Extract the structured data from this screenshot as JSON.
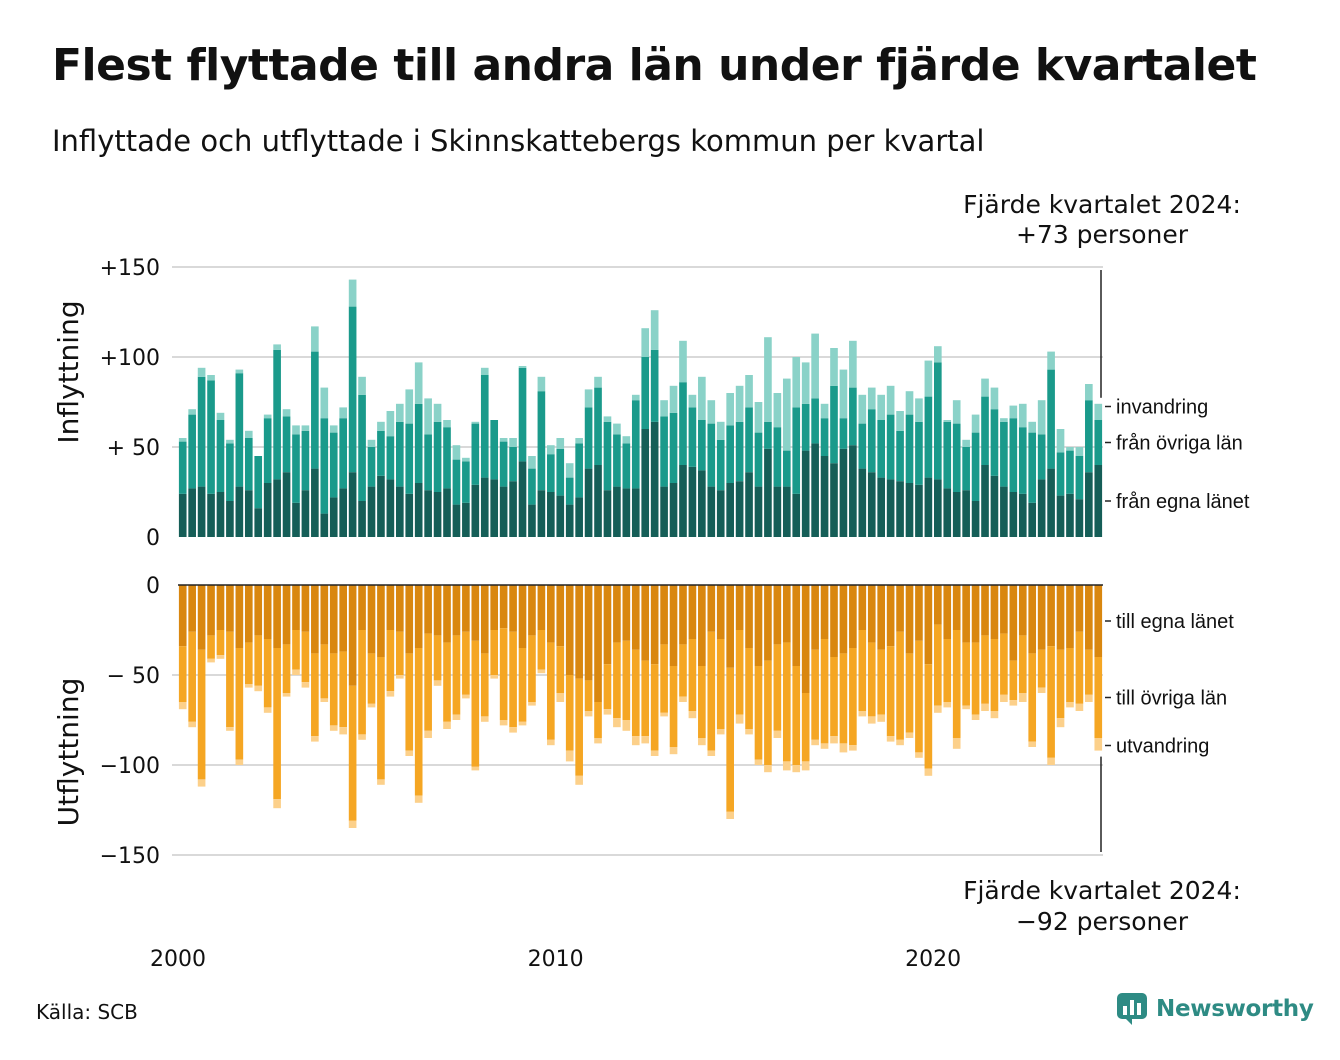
{
  "title": "Flest flyttade till andra län under fjärde kvartalet",
  "subtitle": "Inflyttade och utflyttade i Skinnskattebergs kommun per kvartal",
  "source": "Källa: SCB",
  "brand": "Newsworthy",
  "colors": {
    "in_own": "#155e57",
    "in_other": "#1a9a8b",
    "in_immig": "#8ad2c8",
    "out_own": "#d9870f",
    "out_other": "#f5a623",
    "out_emig": "#fcd08a",
    "grid": "#d9d9d9",
    "brand": "#2e8b84"
  },
  "annotations": {
    "top_line1": "Fjärde kvartalet 2024:",
    "top_line2": "+73 personer",
    "bottom_line1": "Fjärde kvartalet 2024:",
    "bottom_line2": "−92 personer"
  },
  "chart_data": [
    {
      "type": "bar",
      "stacked": true,
      "ylabel": "Inflyttning",
      "ylim": [
        0,
        150
      ],
      "yticks": [
        0,
        50,
        100,
        150
      ],
      "ytick_labels": [
        "0",
        "+ 50",
        "+100",
        "+150"
      ],
      "xticks": [
        "2000",
        "2010",
        "2020"
      ],
      "grid": true,
      "series": [
        {
          "name": "från egna länet",
          "values": [
            24,
            27,
            28,
            24,
            25,
            20,
            28,
            26,
            16,
            30,
            32,
            36,
            19,
            26,
            38,
            13,
            22,
            27,
            36,
            20,
            28,
            34,
            32,
            28,
            24,
            30,
            26,
            25,
            27,
            18,
            19,
            29,
            33,
            32,
            28,
            31,
            42,
            18,
            26,
            25,
            23,
            18,
            22,
            38,
            40,
            26,
            28,
            27,
            27,
            60,
            64,
            28,
            30,
            40,
            39,
            37,
            28,
            26,
            30,
            31,
            36,
            28,
            49,
            28,
            28,
            24,
            48,
            52,
            45,
            41,
            49,
            51,
            38,
            36,
            33,
            32,
            31,
            30,
            29,
            33,
            32,
            27,
            25,
            26,
            20,
            40,
            34,
            28,
            25,
            24,
            19,
            32,
            38,
            23,
            24,
            21,
            36,
            40
          ]
        },
        {
          "name": "från övriga län",
          "values": [
            29,
            41,
            61,
            63,
            40,
            32,
            63,
            29,
            29,
            36,
            72,
            31,
            38,
            33,
            65,
            53,
            36,
            39,
            92,
            59,
            22,
            25,
            24,
            36,
            39,
            44,
            31,
            39,
            34,
            25,
            23,
            34,
            57,
            33,
            25,
            19,
            52,
            20,
            55,
            21,
            26,
            15,
            30,
            34,
            43,
            38,
            29,
            25,
            49,
            40,
            40,
            39,
            39,
            46,
            33,
            28,
            35,
            28,
            32,
            33,
            36,
            30,
            15,
            33,
            20,
            48,
            26,
            25,
            21,
            43,
            17,
            32,
            25,
            35,
            32,
            36,
            28,
            38,
            35,
            45,
            65,
            37,
            38,
            24,
            38,
            38,
            37,
            36,
            41,
            37,
            39,
            25,
            55,
            24,
            24,
            24,
            40,
            25
          ]
        },
        {
          "name": "invandring",
          "values": [
            2,
            3,
            5,
            3,
            4,
            2,
            2,
            4,
            0,
            2,
            3,
            4,
            5,
            3,
            14,
            17,
            4,
            6,
            15,
            10,
            4,
            5,
            14,
            10,
            19,
            23,
            20,
            10,
            4,
            8,
            2,
            1,
            4,
            0,
            2,
            5,
            1,
            7,
            8,
            5,
            6,
            8,
            3,
            10,
            6,
            3,
            6,
            4,
            3,
            16,
            22,
            9,
            15,
            23,
            7,
            24,
            13,
            10,
            18,
            20,
            18,
            17,
            47,
            19,
            40,
            28,
            23,
            36,
            8,
            21,
            27,
            26,
            16,
            12,
            14,
            16,
            11,
            13,
            13,
            20,
            9,
            1,
            13,
            4,
            10,
            10,
            12,
            2,
            7,
            13,
            6,
            19,
            10,
            13,
            2,
            5,
            9,
            9
          ]
        }
      ]
    },
    {
      "type": "bar",
      "stacked": true,
      "ylabel": "Utflyttning",
      "ylim": [
        -150,
        0
      ],
      "yticks": [
        0,
        -50,
        -100,
        -150
      ],
      "ytick_labels": [
        "0",
        "− 50",
        "−100",
        "−150"
      ],
      "xticks": [
        "2000",
        "2010",
        "2020"
      ],
      "grid": true,
      "series": [
        {
          "name": "till egna länet",
          "values": [
            -34,
            -26,
            -36,
            -28,
            -25,
            -26,
            -35,
            -32,
            -28,
            -30,
            -35,
            -33,
            -25,
            -26,
            -38,
            -33,
            -38,
            -37,
            -56,
            -25,
            -38,
            -40,
            -25,
            -26,
            -38,
            -35,
            -27,
            -28,
            -32,
            -28,
            -26,
            -31,
            -38,
            -25,
            -24,
            -26,
            -35,
            -28,
            -25,
            -32,
            -34,
            -50,
            -52,
            -53,
            -65,
            -44,
            -32,
            -31,
            -36,
            -42,
            -44,
            -33,
            -45,
            -33,
            -30,
            -45,
            -26,
            -30,
            -46,
            -25,
            -35,
            -45,
            -42,
            -33,
            -32,
            -45,
            -60,
            -36,
            -30,
            -40,
            -38,
            -35,
            -25,
            -32,
            -36,
            -34,
            -26,
            -38,
            -31,
            -44,
            -22,
            -30,
            -25,
            -32,
            -32,
            -28,
            -30,
            -27,
            -42,
            -28,
            -38,
            -36,
            -34,
            -36,
            -35,
            -26,
            -36,
            -40
          ]
        },
        {
          "name": "till övriga län",
          "values": [
            -31,
            -50,
            -72,
            -13,
            -14,
            -53,
            -62,
            -23,
            -28,
            -38,
            -84,
            -27,
            -22,
            -28,
            -46,
            -30,
            -40,
            -42,
            -75,
            -58,
            -28,
            -68,
            -34,
            -24,
            -54,
            -82,
            -54,
            -25,
            -44,
            -44,
            -35,
            -70,
            -35,
            -25,
            -51,
            -53,
            -41,
            -37,
            -22,
            -54,
            -26,
            -42,
            -54,
            -17,
            -20,
            -25,
            -42,
            -44,
            -48,
            -42,
            -48,
            -38,
            -45,
            -29,
            -40,
            -40,
            -66,
            -50,
            -80,
            -47,
            -45,
            -52,
            -58,
            -48,
            -66,
            -55,
            -38,
            -50,
            -58,
            -44,
            -50,
            -54,
            -45,
            -41,
            -36,
            -50,
            -60,
            -44,
            -62,
            -58,
            -45,
            -35,
            -60,
            -35,
            -40,
            -38,
            -40,
            -34,
            -22,
            -32,
            -49,
            -21,
            -62,
            -38,
            -30,
            -40,
            -25,
            -45
          ]
        },
        {
          "name": "utvandring",
          "values": [
            -4,
            -3,
            -4,
            -2,
            -2,
            -2,
            -3,
            -2,
            -3,
            -3,
            -5,
            -2,
            -3,
            -3,
            -3,
            -2,
            -3,
            -4,
            -4,
            -3,
            -2,
            -3,
            -3,
            -2,
            -3,
            -4,
            -4,
            -3,
            -4,
            -3,
            -2,
            -2,
            -3,
            -2,
            -3,
            -3,
            -2,
            -2,
            -2,
            -3,
            -5,
            -6,
            -5,
            -3,
            -3,
            -3,
            -5,
            -6,
            -5,
            -4,
            -3,
            -2,
            -4,
            -3,
            -4,
            -4,
            -3,
            -3,
            -4,
            -5,
            -3,
            -3,
            -4,
            -4,
            -5,
            -4,
            -5,
            -3,
            -3,
            -4,
            -5,
            -3,
            -3,
            -4,
            -4,
            -3,
            -3,
            -3,
            -3,
            -4,
            -4,
            -3,
            -6,
            -2,
            -3,
            -4,
            -4,
            -4,
            -3,
            -5,
            -3,
            -3,
            -4,
            -5,
            -3,
            -4,
            -4,
            -7
          ]
        }
      ]
    }
  ]
}
